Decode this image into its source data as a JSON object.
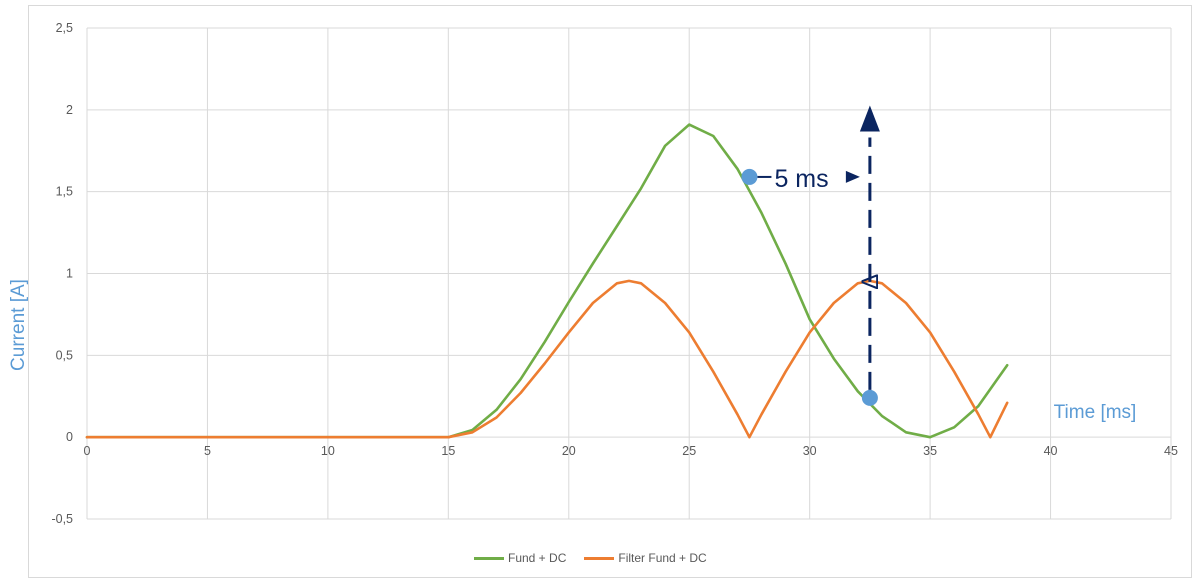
{
  "chart_data": {
    "type": "line",
    "title": "",
    "xlabel": "Time [ms]",
    "ylabel": "Current [A]",
    "xlim": [
      0,
      45
    ],
    "ylim": [
      -0.5,
      2.5
    ],
    "x_ticks": [
      "0",
      "5",
      "10",
      "15",
      "20",
      "25",
      "30",
      "35",
      "40",
      "45"
    ],
    "y_ticks": [
      "-0,5",
      "0",
      "0,5",
      "1",
      "1,5",
      "2",
      "2,5"
    ],
    "grid": true,
    "legend_position": "bottom",
    "series": [
      {
        "name": "Fund + DC",
        "color": "#70ad47",
        "x": [
          0,
          5,
          10,
          15,
          16,
          17,
          18,
          19,
          20,
          21,
          22,
          23,
          24,
          25,
          26,
          27,
          28,
          29,
          30,
          31,
          32,
          33,
          34,
          35,
          36,
          37,
          38.2
        ],
        "y": [
          0,
          0,
          0,
          0,
          0.044,
          0.167,
          0.354,
          0.582,
          0.826,
          1.061,
          1.29,
          1.52,
          1.78,
          1.91,
          1.84,
          1.64,
          1.37,
          1.06,
          0.72,
          0.48,
          0.28,
          0.13,
          0.03,
          0,
          0.06,
          0.19,
          0.44
        ]
      },
      {
        "name": "Filter Fund + DC",
        "color": "#ed7d31",
        "x": [
          0,
          5,
          10,
          15,
          16,
          17,
          18,
          19,
          20,
          21,
          22,
          22.5,
          23,
          24,
          25,
          26,
          27,
          27.5,
          28,
          29,
          30,
          31,
          32,
          32.5,
          33,
          34,
          35,
          36,
          37,
          37.5,
          38.2
        ],
        "y": [
          0,
          0,
          0,
          0,
          0.03,
          0.12,
          0.27,
          0.45,
          0.64,
          0.82,
          0.94,
          0.955,
          0.94,
          0.82,
          0.64,
          0.4,
          0.14,
          0,
          0.14,
          0.4,
          0.64,
          0.82,
          0.94,
          0.955,
          0.94,
          0.82,
          0.64,
          0.4,
          0.14,
          0,
          0.21
        ]
      }
    ],
    "annotations": [
      {
        "text": "5 ms",
        "from": [
          27.5,
          1.59
        ],
        "to": [
          32.5,
          1.59
        ]
      },
      {
        "text": "Δ",
        "from": [
          32.5,
          0.24
        ],
        "to": [
          32.5,
          1.88
        ]
      }
    ],
    "markers": [
      {
        "x": 27.5,
        "y": 1.59,
        "color": "#5b9bd5"
      },
      {
        "x": 32.5,
        "y": 0.24,
        "color": "#5b9bd5"
      }
    ],
    "annotation_color": "#0b2560"
  }
}
